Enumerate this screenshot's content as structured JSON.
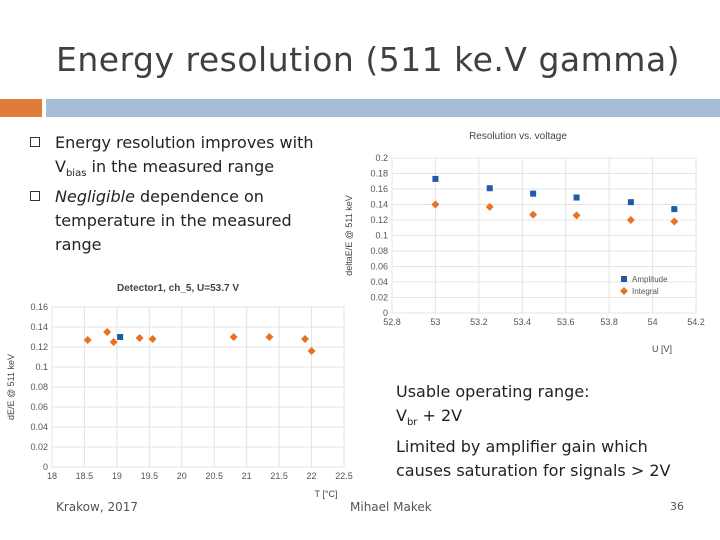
{
  "slide": {
    "title": "Energy resolution (511 ke.V gamma)",
    "bullets": [
      {
        "pre": "Energy resolution improves with V",
        "sub": "bias",
        "post": " in the measured range"
      },
      {
        "pre_italic": "Negligible",
        "rest": " dependence on temperature in the measured range"
      }
    ],
    "note_line1": "Usable operating range:",
    "note_line2_pre": "V",
    "note_line2_sub": "br",
    "note_line2_post": " + 2V",
    "note_line3": "Limited by amplifier gain which",
    "note_line4": "causes saturation for signals > 2V",
    "footer_left": "Krakow, 2017",
    "footer_center": "Mihael Makek",
    "footer_page": "36"
  },
  "chart_data": [
    {
      "type": "scatter",
      "title": "Resolution vs. voltage",
      "xlabel": "U [V]",
      "ylabel": "deltaE/E @ 511 keV",
      "x_ticks": [
        "52.8",
        "53",
        "53.2",
        "53.4",
        "53.6",
        "53.8",
        "54",
        "54.2"
      ],
      "y_ticks": [
        "0",
        "0.02",
        "0.04",
        "0.06",
        "0.08",
        "0.1",
        "0.12",
        "0.14",
        "0.16",
        "0.18",
        "0.2"
      ],
      "xlim": [
        52.8,
        54.2
      ],
      "ylim": [
        0,
        0.2
      ],
      "series": [
        {
          "name": "Amplitude",
          "color": "#1f5aa6",
          "marker": "square",
          "x": [
            53.0,
            53.25,
            53.45,
            53.65,
            53.9,
            54.1
          ],
          "y": [
            0.173,
            0.161,
            0.154,
            0.149,
            0.143,
            0.134
          ]
        },
        {
          "name": "Integral",
          "color": "#e8731f",
          "marker": "diamond",
          "x": [
            53.0,
            53.25,
            53.45,
            53.65,
            53.9,
            54.1
          ],
          "y": [
            0.14,
            0.137,
            0.127,
            0.126,
            0.12,
            0.118
          ]
        }
      ],
      "legend": [
        "Amplitude",
        "Integral"
      ]
    },
    {
      "type": "scatter",
      "title": "Detector1, ch_5, U=53.7 V",
      "xlabel": "T [°C]",
      "ylabel": "dE/E @ 511 keV",
      "x_ticks": [
        "18",
        "18.5",
        "19",
        "19.5",
        "20",
        "20.5",
        "21",
        "21.5",
        "22",
        "22.5"
      ],
      "y_ticks": [
        "0",
        "0.02",
        "0.04",
        "0.06",
        "0.08",
        "0.1",
        "0.12",
        "0.14",
        "0.16"
      ],
      "xlim": [
        18,
        22.5
      ],
      "ylim": [
        0,
        0.16
      ],
      "series": [
        {
          "name": "Amplitude",
          "color": "#1f5aa6",
          "marker": "square",
          "x": [
            19.05
          ],
          "y": [
            0.13
          ]
        },
        {
          "name": "Integral",
          "color": "#e8731f",
          "marker": "diamond",
          "x": [
            18.55,
            18.85,
            18.95,
            19.35,
            19.55,
            20.8,
            21.35,
            21.9,
            22.0
          ],
          "y": [
            0.127,
            0.135,
            0.125,
            0.129,
            0.128,
            0.13,
            0.13,
            0.128,
            0.116
          ]
        }
      ]
    }
  ]
}
